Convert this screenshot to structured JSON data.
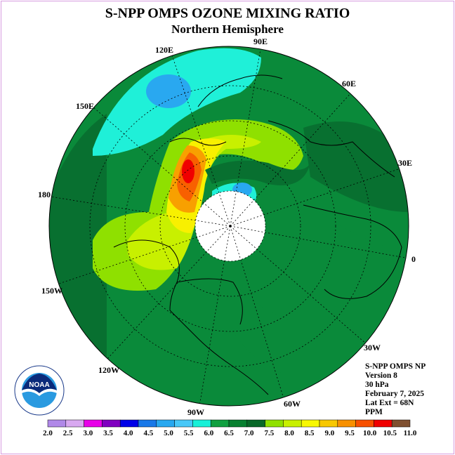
{
  "title": "S-NPP OMPS OZONE MIXING RATIO",
  "subtitle": "Northern Hemisphere",
  "longitude_labels": {
    "e90": "90E",
    "e60": "60E",
    "e30": "30E",
    "zero": "0",
    "w30": "30W",
    "w60": "60W",
    "w90": "90W",
    "w120": "120W",
    "w150": "150W",
    "l180": "180",
    "e150": "150E",
    "e120": "120E"
  },
  "info": {
    "product": "S-NPP OMPS NP",
    "version": "Version 8",
    "level": "30 hPa",
    "date": "February 7, 2025",
    "lat_ext": "Lat Ext = 68N",
    "units": "PPM"
  },
  "logo": {
    "text": "NOAA",
    "ring_text": "NATIONAL OCEANIC AND ATMOSPHERIC ADMINISTRATION • U.S. DEPARTMENT OF COMMERCE"
  },
  "colorbar": {
    "ticks": [
      "2.0",
      "2.5",
      "3.0",
      "3.5",
      "4.0",
      "4.5",
      "5.0",
      "5.5",
      "6.0",
      "6.5",
      "7.0",
      "7.5",
      "8.0",
      "8.5",
      "9.0",
      "9.5",
      "10.0",
      "10.5",
      "11.0"
    ],
    "colors": [
      "#b088e8",
      "#d8a8f0",
      "#e800e8",
      "#8000c0",
      "#0000e8",
      "#1878e8",
      "#28a8f0",
      "#48c8f8",
      "#18f0d8",
      "#10a040",
      "#088030",
      "#086828",
      "#90e000",
      "#c8f000",
      "#f8f800",
      "#f8c800",
      "#f89000",
      "#f85000",
      "#f00000",
      "#805030"
    ]
  },
  "map_colors": {
    "ocean_base": "#0a8a3a",
    "dark_green": "#087030",
    "mid_green": "#0f9a3f",
    "cyan": "#1ff0d8",
    "light_blue": "#29a8f0",
    "lime": "#8fe000",
    "yellow_green": "#c8f000",
    "yellow": "#f8f000",
    "orange": "#f8a000",
    "dark_orange": "#f86000",
    "red": "#f00000"
  }
}
